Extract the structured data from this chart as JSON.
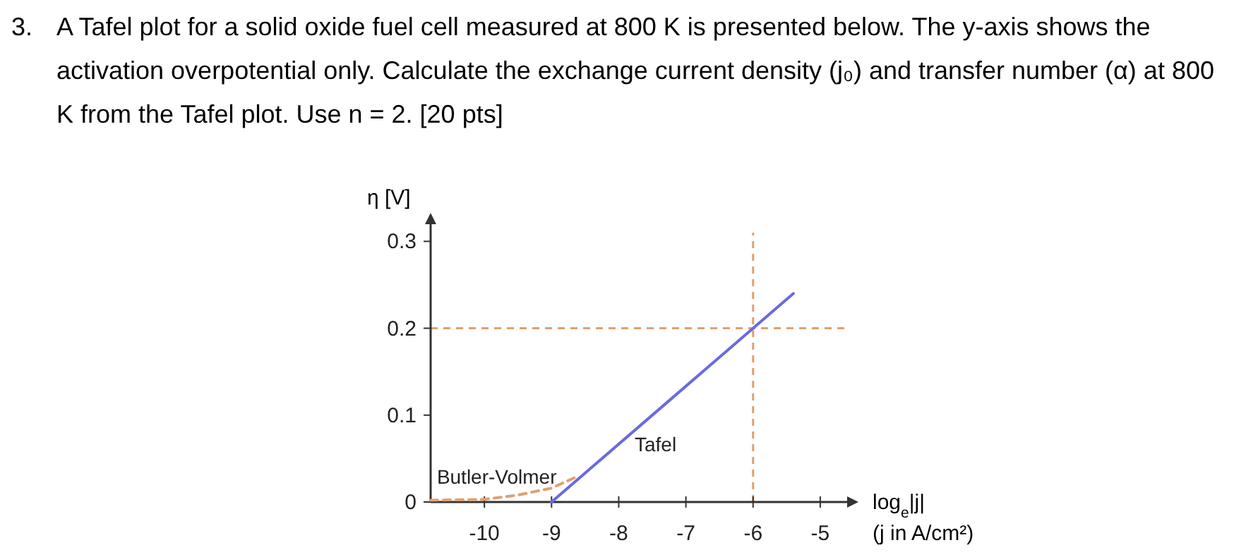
{
  "chart_data": {
    "type": "line",
    "title": "3.\tA Tafel plot for a solid oxide fuel cell measured at 800 K is presented below. The y-axis shows the activation overpotential only. Calculate the exchange current density (j₀) and transfer number (α) at 800 K from the Tafel plot. Use n = 2. [20 pts]",
    "xlabel": "log$_{e}$|j|\n(j in A/cm²)",
    "ylabel": "η [V]",
    "xlim": [
      -10.8,
      -4.6
    ],
    "xticks": [
      -10,
      -9,
      -8,
      -7,
      -6,
      -5
    ],
    "ylim": [
      0,
      0.31
    ],
    "yticks": [
      0,
      0.1,
      0.2,
      0.3
    ],
    "grid": false,
    "marker": "none",
    "series": [
      {
        "name": "Tafel",
        "color": "#6a6ae0",
        "line_style": "solid",
        "x": [
          -9,
          -7.2,
          -5.4
        ],
        "values": [
          0,
          0.12,
          0.24
        ]
      },
      {
        "name": "Butler-Volmer",
        "color": "#e0a070",
        "line_style": "dashed",
        "x": [
          -10.8,
          -10,
          -9.5,
          -9,
          -8.6
        ],
        "values": [
          0.002,
          0.003,
          0.008,
          0.016,
          0.03
        ]
      }
    ],
    "ref_lines": [
      {
        "axis": "y",
        "value": 0.2,
        "color": "#e0a070",
        "line_style": "dashed"
      },
      {
        "axis": "x",
        "value": -6,
        "color": "#e0a070",
        "line_style": "dashed"
      }
    ]
  }
}
